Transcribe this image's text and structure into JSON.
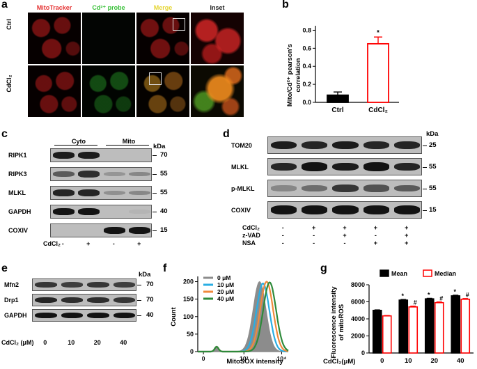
{
  "panels": {
    "a": {
      "label": "a",
      "columns": [
        "MitoTracker",
        "Cd²⁺ probe",
        "Merge",
        "Inset"
      ],
      "column_colors": [
        "#e53333",
        "#38c038",
        "#e5d533",
        "#ffffff"
      ],
      "rows": [
        "Ctrl",
        "CdCl₂"
      ]
    },
    "b": {
      "label": "b",
      "ylabel_line1": "Mito/Cd²⁺ pearson's",
      "ylabel_line2": "correlation",
      "significance": "*"
    },
    "c": {
      "label": "c",
      "groups": [
        "Cyto",
        "Mito"
      ],
      "kda_label": "kDa",
      "rows": [
        {
          "name": "RIPK1",
          "mw": "70"
        },
        {
          "name": "RIPK3",
          "mw": "55"
        },
        {
          "name": "MLKL",
          "mw": "55"
        },
        {
          "name": "GAPDH",
          "mw": "40"
        },
        {
          "name": "COXIV",
          "mw": "15"
        }
      ],
      "treatment_label": "CdCl₂",
      "treatment": [
        "-",
        "+",
        "-",
        "+"
      ]
    },
    "d": {
      "label": "d",
      "kda_label": "kDa",
      "rows": [
        {
          "name": "TOM20",
          "mw": "25"
        },
        {
          "name": "MLKL",
          "mw": "55"
        },
        {
          "name": "p-MLKL",
          "mw": "55"
        },
        {
          "name": "COXIV",
          "mw": "15"
        }
      ],
      "treatments": [
        {
          "name": "CdCl₂",
          "signs": [
            "-",
            "+",
            "+",
            "+",
            "+"
          ]
        },
        {
          "name": "z-VAD",
          "signs": [
            "-",
            "-",
            "+",
            "-",
            "+"
          ]
        },
        {
          "name": "NSA",
          "signs": [
            "-",
            "-",
            "-",
            "+",
            "+"
          ]
        }
      ]
    },
    "e": {
      "label": "e",
      "kda_label": "kDa",
      "rows": [
        {
          "name": "Mfn2",
          "mw": "70"
        },
        {
          "name": "Drp1",
          "mw": "70"
        },
        {
          "name": "GAPDH",
          "mw": "40"
        }
      ],
      "treatment_label": "CdCl₂ (μM)",
      "doses": [
        "0",
        "10",
        "20",
        "40"
      ]
    },
    "f": {
      "label": "f",
      "ylabel": "Count",
      "xlabel": "MitoSOX intensity",
      "legend": [
        "0 μM",
        "10 μM",
        "20 μM",
        "40 μM"
      ]
    },
    "g": {
      "label": "g",
      "ylabel_line1": "Fluorescence intensity",
      "ylabel_line2": "of mitoROS",
      "legend": [
        "Mean",
        "Median"
      ],
      "xlabel": "CdCl₂(μM)",
      "sig_mean": "*",
      "sig_median": "#"
    }
  },
  "chart_data": [
    {
      "type": "bar",
      "panel": "b",
      "categories": [
        "Ctrl",
        "CdCl₂"
      ],
      "values": [
        0.08,
        0.65
      ],
      "errors": [
        0.035,
        0.075
      ],
      "yticks": [
        0.0,
        0.2,
        0.4,
        0.6,
        0.8
      ],
      "ylim": [
        0,
        0.85
      ],
      "colors": [
        "#000000",
        "#ff0000"
      ],
      "fill": [
        "solid",
        "hollow"
      ]
    },
    {
      "type": "line",
      "panel": "f",
      "x_scale": "log",
      "xlim": [
        -300,
        15000
      ],
      "ylim": [
        0,
        215
      ],
      "yticks": [
        0,
        50,
        100,
        150,
        200
      ],
      "xtick_labels": [
        "0",
        "10³",
        "10⁴"
      ],
      "series": [
        {
          "name": "0 μM",
          "color": "#8c8c8c",
          "filled": true,
          "peak_x": 2600,
          "peak_y": 200
        },
        {
          "name": "10 μM",
          "color": "#29aee3",
          "filled": false,
          "peak_x": 3200,
          "peak_y": 195
        },
        {
          "name": "20 μM",
          "color": "#f08a3c",
          "filled": false,
          "peak_x": 4000,
          "peak_y": 200
        },
        {
          "name": "40 μM",
          "color": "#2e8a3a",
          "filled": false,
          "peak_x": 4800,
          "peak_y": 198
        }
      ]
    },
    {
      "type": "bar",
      "panel": "g",
      "categories": [
        "0",
        "10",
        "20",
        "40"
      ],
      "series": [
        {
          "name": "Mean",
          "values": [
            5000,
            6200,
            6350,
            6700
          ],
          "errors": [
            60,
            80,
            70,
            80
          ],
          "color": "#000000",
          "fill": "solid"
        },
        {
          "name": "Median",
          "values": [
            4350,
            5400,
            5900,
            6300
          ],
          "errors": [
            50,
            100,
            90,
            90
          ],
          "color": "#ff0000",
          "fill": "hollow"
        }
      ],
      "yticks": [
        0,
        2000,
        4000,
        6000,
        8000
      ],
      "ylim": [
        0,
        8000
      ]
    }
  ]
}
